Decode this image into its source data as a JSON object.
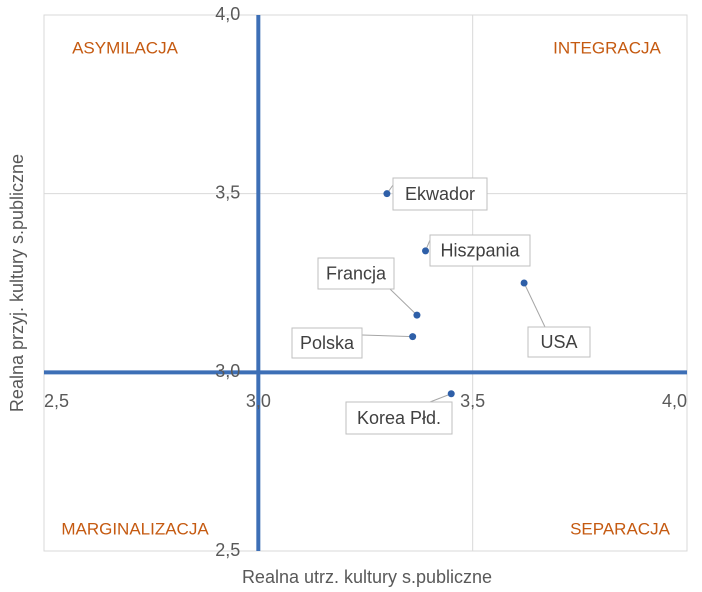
{
  "chart_data": {
    "type": "scatter",
    "xlabel": "Realna utrz. kultury s.publiczne",
    "ylabel": "Realna przyj. kultury s.publiczne",
    "x": [
      3.3,
      3.39,
      3.37,
      3.36,
      3.62,
      3.45
    ],
    "values": [
      3.5,
      3.34,
      3.16,
      3.1,
      3.25,
      2.94
    ],
    "point_labels": [
      "Ekwador",
      "Hiszpania",
      "Francja",
      "Polska",
      "USA",
      "Korea Płd."
    ],
    "color": "#2e5fa8",
    "xlim": [
      2.5,
      4.0
    ],
    "ylim": [
      2.5,
      4.0
    ],
    "xticks": [
      {
        "value": 2.5,
        "label": "2,5"
      },
      {
        "value": 3.0,
        "label": "3,0"
      },
      {
        "value": 3.5,
        "label": "3,5"
      },
      {
        "value": 4.0,
        "label": "4,0"
      }
    ],
    "yticks": [
      {
        "value": 2.5,
        "label": "2,5"
      },
      {
        "value": 3.0,
        "label": "3,0"
      },
      {
        "value": 3.5,
        "label": "3,5"
      },
      {
        "value": 4.0,
        "label": "4,0"
      }
    ],
    "grid": true,
    "annotations": [
      "ASYMILACJA",
      "INTEGRACJA",
      "MARGINALIZACJA",
      "SEPARACJA"
    ]
  }
}
